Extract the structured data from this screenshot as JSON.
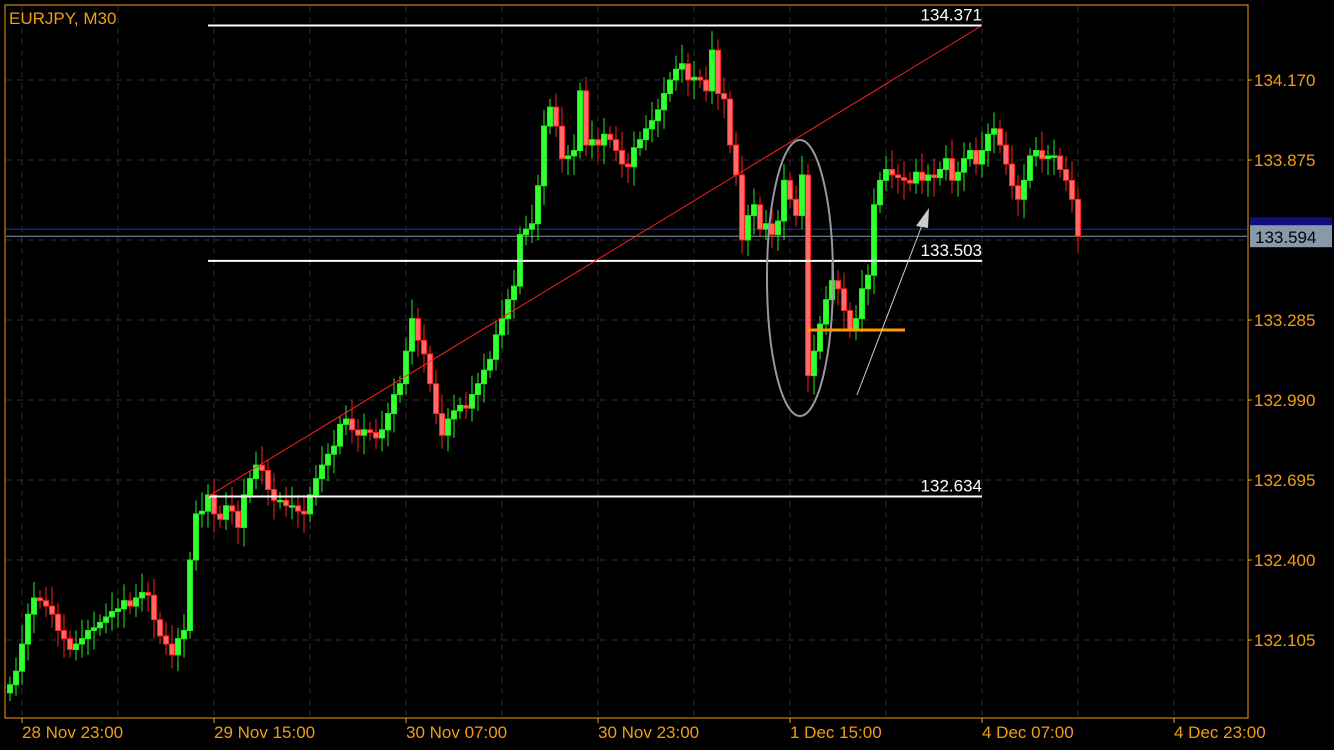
{
  "chart_data": {
    "type": "candlestick",
    "title": "EURJPY, M30",
    "symbol": "EURJPY",
    "timeframe": "M30",
    "y_ticks": [
      "134.170",
      "133.875",
      "133.285",
      "132.990",
      "132.695",
      "132.400",
      "132.105"
    ],
    "x_ticks": [
      "28 Nov 23:00",
      "29 Nov 15:00",
      "30 Nov 07:00",
      "30 Nov 23:00",
      "1 Dec 15:00",
      "4 Dec 07:00",
      "4 Dec 23:00"
    ],
    "ylim": [
      131.87,
      134.43
    ],
    "grid": true,
    "close": [
      131.94,
      131.99,
      132.09,
      132.2,
      132.26,
      132.25,
      132.23,
      132.2,
      132.14,
      132.11,
      132.07,
      132.09,
      132.11,
      132.14,
      132.15,
      132.17,
      132.19,
      132.21,
      132.22,
      132.25,
      132.23,
      132.26,
      132.28,
      132.27,
      132.18,
      132.12,
      132.09,
      132.05,
      132.11,
      132.14,
      132.4,
      132.57,
      132.58,
      132.64,
      132.57,
      132.55,
      132.6,
      132.58,
      132.52,
      132.64,
      132.7,
      132.75,
      132.73,
      132.66,
      132.62,
      132.62,
      132.6,
      132.6,
      132.58,
      132.57,
      132.64,
      132.7,
      132.75,
      132.79,
      132.82,
      132.9,
      132.92,
      132.88,
      132.86,
      132.88,
      132.87,
      132.85,
      132.88,
      132.94,
      133.01,
      133.05,
      133.17,
      133.29,
      133.21,
      133.16,
      133.05,
      132.94,
      132.86,
      132.92,
      132.95,
      132.97,
      132.96,
      133.01,
      133.05,
      133.1,
      133.14,
      133.23,
      133.29,
      133.36,
      133.41,
      133.6,
      133.62,
      133.64,
      133.78,
      134.0,
      134.07,
      134.0,
      133.88,
      133.89,
      133.91,
      134.13,
      133.93,
      133.95,
      133.93,
      133.97,
      133.95,
      133.91,
      133.86,
      133.85,
      133.92,
      133.95,
      133.99,
      134.02,
      134.06,
      134.12,
      134.17,
      134.21,
      134.23,
      134.17,
      134.18,
      134.17,
      134.13,
      134.28,
      134.12,
      134.1,
      133.93,
      133.82,
      133.58,
      133.67,
      133.71,
      133.62,
      133.64,
      133.6,
      133.65,
      133.8,
      133.73,
      133.67,
      133.82,
      133.08,
      133.17,
      133.27,
      133.36,
      133.43,
      133.4,
      133.32,
      133.25,
      133.29,
      133.4,
      133.45,
      133.71,
      133.8,
      133.84,
      133.82,
      133.81,
      133.8,
      133.79,
      133.83,
      133.8,
      133.82,
      133.81,
      133.84,
      133.88,
      133.8,
      133.83,
      133.88,
      133.91,
      133.86,
      133.91,
      133.97,
      133.99,
      133.93,
      133.86,
      133.78,
      133.73,
      133.8,
      133.89,
      133.91,
      133.88,
      133.89,
      133.89,
      133.84,
      133.8,
      133.73,
      133.594
    ],
    "bid_price": "133.594",
    "horizontal_lines": [
      {
        "price": 134.371,
        "label": "134.371"
      },
      {
        "price": 133.503,
        "label": "133.503"
      },
      {
        "price": 132.634,
        "label": "132.634"
      }
    ],
    "trendline": {
      "from_price": 132.634,
      "to_price": 134.371
    },
    "support_segment_price": 133.248,
    "colors": {
      "background": "#000000",
      "axis": "#f39c12",
      "bull_body": "#33ff33",
      "bear_body": "#ff6b6b",
      "bear_wick": "#ff2020",
      "trendline": "#ff2020",
      "bid_line": "#8899aa",
      "ask_line": "#1a1a80",
      "support_segment": "#ff9900"
    }
  }
}
